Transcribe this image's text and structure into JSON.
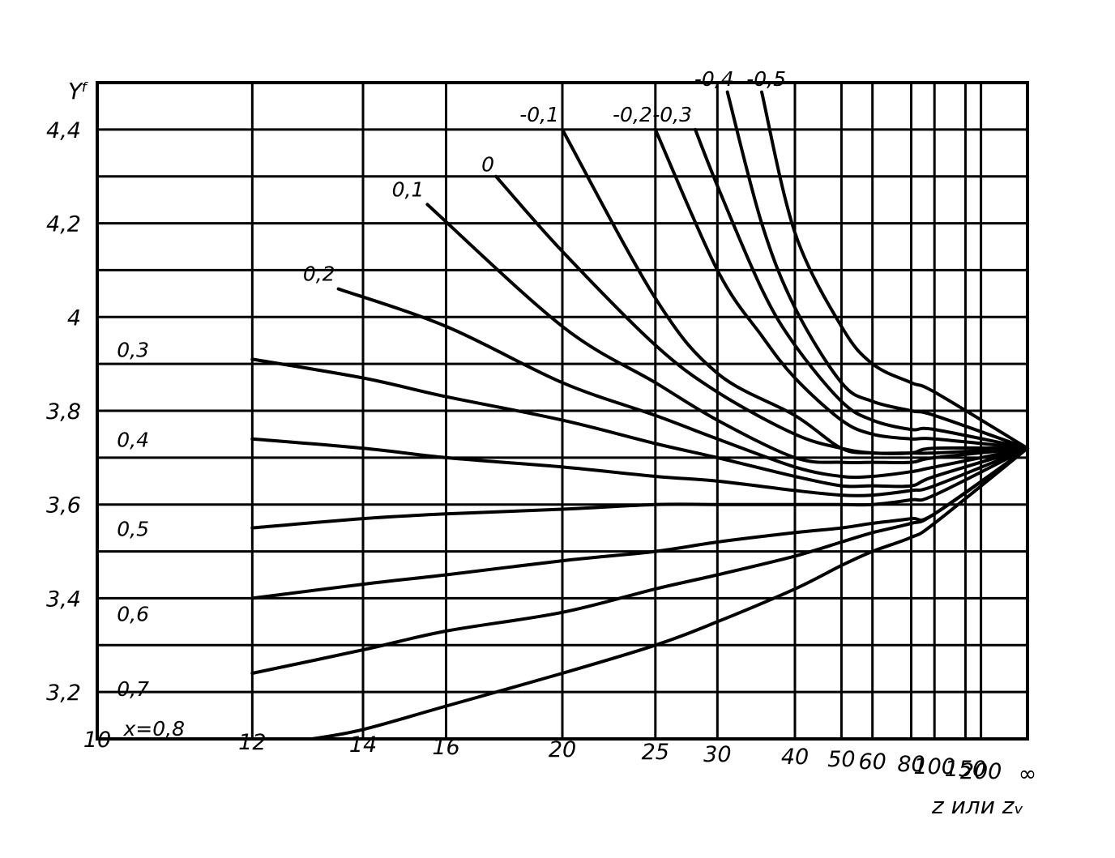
{
  "chart_data": {
    "type": "line",
    "xlabel": "z или zᵥ",
    "ylabel": "Yᶠ",
    "x_scale": "reciprocal",
    "ylim": [
      3.1,
      4.5
    ],
    "grid": true,
    "x_ticks": [
      {
        "label": "10",
        "value": 10
      },
      {
        "label": "12",
        "value": 12
      },
      {
        "label": "14",
        "value": 14
      },
      {
        "label": "16",
        "value": 16
      },
      {
        "label": "20",
        "value": 20
      },
      {
        "label": "25",
        "value": 25
      },
      {
        "label": "30",
        "value": 30
      },
      {
        "label": "40",
        "value": 40
      },
      {
        "label": "50",
        "value": 50
      },
      {
        "label": "60",
        "value": 60
      },
      {
        "label": "80",
        "value": 80
      },
      {
        "label": "100",
        "value": 100
      },
      {
        "label": "150",
        "value": 150
      },
      {
        "label": "200",
        "value": 200
      },
      {
        "label": "∞",
        "value": "inf"
      }
    ],
    "y_ticks": [
      {
        "label": "3,2",
        "value": 3.2
      },
      {
        "label": "3,4",
        "value": 3.4
      },
      {
        "label": "3,6",
        "value": 3.6
      },
      {
        "label": "3,8",
        "value": 3.8
      },
      {
        "label": "4",
        "value": 4.0
      },
      {
        "label": "4,2",
        "value": 4.2
      },
      {
        "label": "4,4",
        "value": 4.4
      }
    ],
    "series": [
      {
        "name": "-0,5",
        "label": "-0,5",
        "x": [
          35,
          40,
          50,
          60,
          80,
          100,
          "inf"
        ],
        "y": [
          4.48,
          4.18,
          3.98,
          3.9,
          3.86,
          3.84,
          3.72
        ]
      },
      {
        "name": "-0,4",
        "label": "-0,4",
        "x": [
          31,
          35,
          40,
          50,
          60,
          80,
          100,
          "inf"
        ],
        "y": [
          4.48,
          4.2,
          4.02,
          3.86,
          3.82,
          3.8,
          3.79,
          3.72
        ]
      },
      {
        "name": "-0,3",
        "label": "-0,3",
        "x": [
          28,
          30,
          35,
          40,
          50,
          60,
          80,
          100,
          "inf"
        ],
        "y": [
          4.4,
          4.28,
          4.06,
          3.94,
          3.82,
          3.78,
          3.76,
          3.76,
          3.72
        ]
      },
      {
        "name": "-0,2",
        "label": "-0,2",
        "x": [
          25,
          30,
          35,
          40,
          50,
          60,
          80,
          100,
          "inf"
        ],
        "y": [
          4.4,
          4.1,
          3.96,
          3.87,
          3.78,
          3.75,
          3.74,
          3.74,
          3.72
        ]
      },
      {
        "name": "-0,1",
        "label": "-0,1",
        "x": [
          20,
          25,
          30,
          40,
          50,
          60,
          80,
          100,
          "inf"
        ],
        "y": [
          4.4,
          4.04,
          3.88,
          3.79,
          3.72,
          3.71,
          3.71,
          3.72,
          3.72
        ]
      },
      {
        "name": "0",
        "label": "0",
        "x": [
          17.5,
          20,
          25,
          30,
          40,
          50,
          60,
          80,
          100,
          "inf"
        ],
        "y": [
          4.3,
          4.14,
          3.94,
          3.84,
          3.75,
          3.72,
          3.71,
          3.71,
          3.71,
          3.72
        ]
      },
      {
        "name": "0,1",
        "label": "0,1",
        "x": [
          15.5,
          20,
          25,
          30,
          40,
          50,
          60,
          80,
          100,
          "inf"
        ],
        "y": [
          4.24,
          3.98,
          3.86,
          3.78,
          3.7,
          3.69,
          3.69,
          3.69,
          3.7,
          3.72
        ]
      },
      {
        "name": "0,2",
        "label": "0,2",
        "x": [
          13.5,
          16,
          20,
          25,
          30,
          40,
          50,
          60,
          80,
          100,
          "inf"
        ],
        "y": [
          4.06,
          3.98,
          3.86,
          3.79,
          3.74,
          3.68,
          3.66,
          3.66,
          3.67,
          3.68,
          3.72
        ]
      },
      {
        "name": "0,3",
        "label": "0,3",
        "x": [
          12,
          14,
          16,
          20,
          25,
          30,
          40,
          50,
          60,
          80,
          100,
          "inf"
        ],
        "y": [
          3.91,
          3.87,
          3.83,
          3.78,
          3.73,
          3.7,
          3.66,
          3.64,
          3.64,
          3.64,
          3.66,
          3.72
        ]
      },
      {
        "name": "0,4",
        "label": "0,4",
        "x": [
          12,
          14,
          16,
          20,
          25,
          30,
          40,
          50,
          60,
          80,
          100,
          "inf"
        ],
        "y": [
          3.74,
          3.72,
          3.7,
          3.68,
          3.66,
          3.65,
          3.63,
          3.62,
          3.62,
          3.63,
          3.64,
          3.72
        ]
      },
      {
        "name": "0,5",
        "label": "0,5",
        "x": [
          12,
          14,
          16,
          20,
          25,
          30,
          40,
          50,
          60,
          80,
          100,
          "inf"
        ],
        "y": [
          3.55,
          3.57,
          3.58,
          3.59,
          3.6,
          3.6,
          3.6,
          3.6,
          3.6,
          3.61,
          3.62,
          3.72
        ]
      },
      {
        "name": "0,6",
        "label": "0,6",
        "x": [
          12,
          14,
          16,
          20,
          25,
          30,
          40,
          50,
          60,
          80,
          100,
          "inf"
        ],
        "y": [
          3.4,
          3.43,
          3.45,
          3.48,
          3.5,
          3.52,
          3.54,
          3.55,
          3.56,
          3.57,
          3.58,
          3.72
        ]
      },
      {
        "name": "0,7",
        "label": "0,7",
        "x": [
          12,
          14,
          16,
          20,
          25,
          30,
          40,
          50,
          60,
          80,
          100,
          "inf"
        ],
        "y": [
          3.24,
          3.29,
          3.33,
          3.37,
          3.42,
          3.45,
          3.49,
          3.52,
          3.54,
          3.56,
          3.58,
          3.72
        ]
      },
      {
        "name": "0,8",
        "label": "x=0,8",
        "x": [
          13,
          14,
          16,
          20,
          25,
          30,
          40,
          50,
          60,
          80,
          100,
          "inf"
        ],
        "y": [
          3.1,
          3.12,
          3.17,
          3.24,
          3.3,
          3.35,
          3.42,
          3.47,
          3.5,
          3.53,
          3.56,
          3.72
        ]
      }
    ]
  }
}
